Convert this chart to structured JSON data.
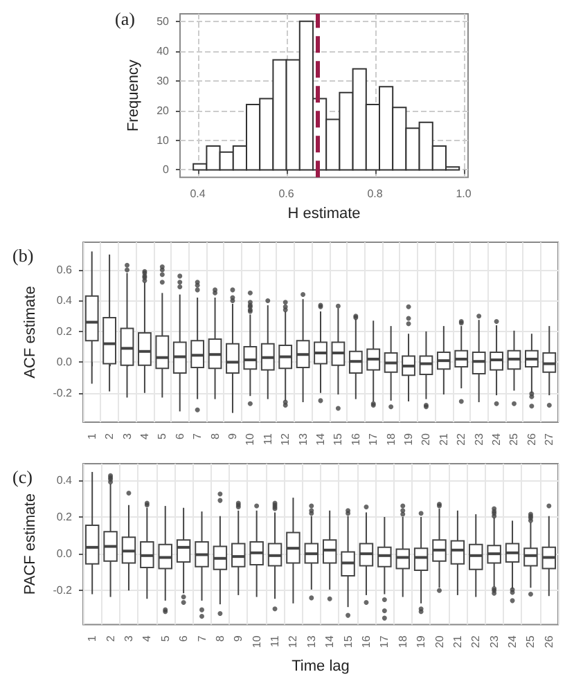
{
  "chart_data": [
    {
      "type": "histogram",
      "title": "(a)",
      "xlabel": "H estimate",
      "ylabel": "Frequency",
      "color": "#ffffff",
      "bins": [
        0.39,
        0.42,
        0.45,
        0.48,
        0.51,
        0.54,
        0.57,
        0.6,
        0.63,
        0.66,
        0.69,
        0.72,
        0.75,
        0.78,
        0.81,
        0.84,
        0.87,
        0.9,
        0.93,
        0.96,
        0.99
      ],
      "values": [
        2,
        8,
        6,
        8,
        22,
        24,
        37,
        37,
        50,
        24,
        17,
        26,
        34,
        22,
        28,
        21,
        14,
        16,
        8,
        1
      ],
      "xlim": [
        0.36,
        1.01
      ],
      "xticks": [
        0.4,
        0.6,
        0.8,
        {
          "value": 1,
          "label": "1.0"
        }
      ],
      "ylim": [
        -2.5,
        52.5
      ],
      "yticks": [
        0,
        10,
        20,
        30,
        40,
        50
      ],
      "ref_lines": [
        {
          "axis": "x",
          "value": 0.67,
          "color": "#9b1b48",
          "line_style": "dashed"
        }
      ],
      "grid": true
    },
    {
      "type": "box",
      "title": "(b)",
      "ylabel": "ACF estimate",
      "color": "#444444",
      "categories": [
        "1",
        "2",
        "3",
        "4",
        "5",
        "6",
        "7",
        "8",
        "9",
        "10",
        "11",
        "12",
        "13",
        "14",
        "15",
        "16",
        "17",
        "18",
        "19",
        "20",
        "21",
        "22",
        "23",
        "24",
        "25",
        "26",
        "27"
      ],
      "boxes": [
        {
          "low": -0.14,
          "q1": 0.14,
          "median": 0.26,
          "q3": 0.43,
          "high": 0.72
        },
        {
          "low": -0.19,
          "q1": -0.01,
          "median": 0.12,
          "q3": 0.29,
          "high": 0.7
        },
        {
          "low": -0.23,
          "q1": -0.02,
          "median": 0.09,
          "q3": 0.22,
          "high": 0.58,
          "outliers": [
            0.63,
            0.6
          ]
        },
        {
          "low": -0.2,
          "q1": -0.02,
          "median": 0.07,
          "q3": 0.19,
          "high": 0.52,
          "outliers": [
            0.59,
            0.58,
            0.56,
            0.55,
            0.53
          ]
        },
        {
          "low": -0.23,
          "q1": -0.04,
          "median": 0.03,
          "q3": 0.17,
          "high": 0.45,
          "outliers": [
            0.62,
            0.6,
            0.57,
            0.52
          ]
        },
        {
          "low": -0.32,
          "q1": -0.07,
          "median": 0.035,
          "q3": 0.13,
          "high": 0.44,
          "outliers": [
            0.56,
            0.52,
            0.49
          ]
        },
        {
          "low": -0.24,
          "q1": -0.035,
          "median": 0.045,
          "q3": 0.14,
          "high": 0.42,
          "outliers": [
            0.52,
            0.5,
            0.47,
            -0.31
          ]
        },
        {
          "low": -0.24,
          "q1": -0.04,
          "median": 0.05,
          "q3": 0.15,
          "high": 0.42,
          "outliers": [
            0.47,
            0.45
          ]
        },
        {
          "low": -0.33,
          "q1": -0.07,
          "median": 0.0,
          "q3": 0.12,
          "high": 0.38,
          "outliers": [
            0.47,
            0.42,
            0.4
          ]
        },
        {
          "low": -0.22,
          "q1": -0.045,
          "median": 0.015,
          "q3": 0.1,
          "high": 0.31,
          "outliers": [
            0.45,
            0.39,
            0.37,
            0.36,
            0.34,
            0.33,
            -0.27
          ]
        },
        {
          "low": -0.24,
          "q1": -0.05,
          "median": 0.03,
          "q3": 0.12,
          "high": 0.37,
          "outliers": [
            0.4
          ]
        },
        {
          "low": -0.25,
          "q1": -0.04,
          "median": 0.035,
          "q3": 0.11,
          "high": 0.33,
          "outliers": [
            0.39,
            0.36,
            0.34,
            -0.26,
            -0.28
          ]
        },
        {
          "low": -0.26,
          "q1": -0.035,
          "median": 0.05,
          "q3": 0.14,
          "high": 0.41,
          "outliers": [
            0.44
          ]
        },
        {
          "low": -0.2,
          "q1": -0.01,
          "median": 0.06,
          "q3": 0.13,
          "high": 0.33,
          "outliers": [
            0.37,
            0.36,
            -0.25
          ]
        },
        {
          "low": -0.21,
          "q1": -0.02,
          "median": 0.06,
          "q3": 0.13,
          "high": 0.35,
          "outliers": [
            0.365,
            -0.3
          ]
        },
        {
          "low": -0.24,
          "q1": -0.07,
          "median": 0.005,
          "q3": 0.07,
          "high": 0.28,
          "outliers": [
            0.3,
            0.29
          ]
        },
        {
          "low": -0.255,
          "q1": -0.05,
          "median": 0.02,
          "q3": 0.085,
          "high": 0.27,
          "outliers": [
            -0.27,
            -0.28
          ]
        },
        {
          "low": -0.25,
          "q1": -0.065,
          "median": -0.005,
          "q3": 0.06,
          "high": 0.235,
          "outliers": [
            -0.29
          ]
        },
        {
          "low": -0.255,
          "q1": -0.085,
          "median": -0.025,
          "q3": 0.04,
          "high": 0.185,
          "outliers": [
            0.36,
            0.285,
            0.25
          ]
        },
        {
          "low": -0.24,
          "q1": -0.08,
          "median": -0.01,
          "q3": 0.04,
          "high": 0.2,
          "outliers": [
            -0.28,
            -0.29
          ]
        },
        {
          "low": -0.21,
          "q1": -0.045,
          "median": 0.01,
          "q3": 0.065,
          "high": 0.235
        },
        {
          "low": -0.17,
          "q1": -0.03,
          "median": 0.02,
          "q3": 0.075,
          "high": 0.235,
          "outliers": [
            0.265,
            0.255,
            -0.255
          ]
        },
        {
          "low": -0.26,
          "q1": -0.075,
          "median": 0.005,
          "q3": 0.065,
          "high": 0.275,
          "outliers": [
            0.3
          ]
        },
        {
          "low": -0.215,
          "q1": -0.05,
          "median": 0.015,
          "q3": 0.065,
          "high": 0.24,
          "outliers": [
            0.265,
            -0.27
          ]
        },
        {
          "low": -0.185,
          "q1": -0.045,
          "median": 0.02,
          "q3": 0.075,
          "high": 0.205,
          "outliers": [
            -0.27
          ]
        },
        {
          "low": -0.2,
          "q1": -0.03,
          "median": 0.02,
          "q3": 0.075,
          "high": 0.185,
          "outliers": [
            -0.205,
            -0.225,
            -0.285
          ]
        },
        {
          "low": -0.215,
          "q1": -0.065,
          "median": -0.01,
          "q3": 0.06,
          "high": 0.235,
          "outliers": [
            -0.28
          ]
        }
      ],
      "ylim": [
        -0.39,
        0.78
      ],
      "yticks": [
        -0.2,
        {
          "value": 0,
          "label": "0.0"
        },
        0.2,
        0.4,
        0.6
      ],
      "grid": true
    },
    {
      "type": "box",
      "title": "(c)",
      "xlabel": "Time lag",
      "ylabel": "PACF estimate",
      "color": "#444444",
      "categories": [
        "1",
        "2",
        "3",
        "4",
        "5",
        "6",
        "7",
        "8",
        "9",
        "10",
        "11",
        "12",
        "13",
        "14",
        "15",
        "16",
        "17",
        "18",
        "19",
        "20",
        "21",
        "22",
        "23",
        "24",
        "25",
        "26"
      ],
      "boxes": [
        {
          "low": -0.22,
          "q1": -0.055,
          "median": 0.035,
          "q3": 0.155,
          "high": 0.445
        },
        {
          "low": -0.235,
          "q1": -0.04,
          "median": 0.04,
          "q3": 0.12,
          "high": 0.38,
          "outliers": [
            0.425,
            0.415,
            0.405,
            0.39
          ]
        },
        {
          "low": -0.2,
          "q1": -0.05,
          "median": 0.015,
          "q3": 0.09,
          "high": 0.265,
          "outliers": [
            0.33
          ]
        },
        {
          "low": -0.245,
          "q1": -0.075,
          "median": -0.01,
          "q3": 0.065,
          "high": 0.25,
          "outliers": [
            0.275,
            0.265
          ]
        },
        {
          "low": -0.255,
          "q1": -0.08,
          "median": -0.02,
          "q3": 0.05,
          "high": 0.26,
          "outliers": [
            -0.305,
            -0.315
          ]
        },
        {
          "low": -0.215,
          "q1": -0.045,
          "median": 0.035,
          "q3": 0.075,
          "high": 0.25,
          "outliers": [
            -0.235,
            -0.265
          ]
        },
        {
          "low": -0.255,
          "q1": -0.07,
          "median": -0.005,
          "q3": 0.065,
          "high": 0.23,
          "outliers": [
            -0.305,
            -0.34
          ]
        },
        {
          "low": -0.275,
          "q1": -0.085,
          "median": -0.025,
          "q3": 0.04,
          "high": 0.205,
          "outliers": [
            0.325,
            0.29,
            -0.325
          ]
        },
        {
          "low": -0.225,
          "q1": -0.07,
          "median": -0.015,
          "q3": 0.055,
          "high": 0.235,
          "outliers": [
            0.275,
            0.265,
            0.255
          ]
        },
        {
          "low": -0.235,
          "q1": -0.06,
          "median": 0.005,
          "q3": 0.065,
          "high": 0.235,
          "outliers": [
            0.26
          ]
        },
        {
          "low": -0.245,
          "q1": -0.065,
          "median": -0.01,
          "q3": 0.055,
          "high": 0.225,
          "outliers": [
            0.275,
            0.265,
            0.255,
            0.245,
            -0.3
          ]
        },
        {
          "low": -0.27,
          "q1": -0.05,
          "median": 0.03,
          "q3": 0.115,
          "high": 0.305
        },
        {
          "low": -0.195,
          "q1": -0.05,
          "median": 0.0,
          "q3": 0.055,
          "high": 0.205,
          "outliers": [
            0.26,
            0.235,
            0.22,
            -0.24
          ]
        },
        {
          "low": -0.195,
          "q1": -0.05,
          "median": 0.02,
          "q3": 0.075,
          "high": 0.235,
          "outliers": [
            -0.245
          ]
        },
        {
          "low": -0.29,
          "q1": -0.12,
          "median": -0.05,
          "q3": 0.01,
          "high": 0.205,
          "outliers": [
            0.235,
            0.22,
            -0.335
          ]
        },
        {
          "low": -0.225,
          "q1": -0.065,
          "median": 0.0,
          "q3": 0.055,
          "high": 0.225,
          "outliers": [
            0.255,
            -0.265
          ]
        },
        {
          "low": -0.22,
          "q1": -0.07,
          "median": -0.01,
          "q3": 0.035,
          "high": 0.2,
          "outliers": [
            -0.25,
            -0.31,
            -0.35
          ]
        },
        {
          "low": -0.235,
          "q1": -0.08,
          "median": -0.02,
          "q3": 0.025,
          "high": 0.2,
          "outliers": [
            0.26,
            0.235,
            0.215
          ]
        },
        {
          "low": -0.27,
          "q1": -0.09,
          "median": -0.02,
          "q3": 0.03,
          "high": 0.2,
          "outliers": [
            0.22,
            -0.3,
            -0.315
          ]
        },
        {
          "low": -0.185,
          "q1": -0.04,
          "median": 0.02,
          "q3": 0.075,
          "high": 0.245,
          "outliers": [
            0.27,
            0.26,
            -0.2
          ]
        },
        {
          "low": -0.225,
          "q1": -0.055,
          "median": 0.02,
          "q3": 0.07,
          "high": 0.235
        },
        {
          "low": -0.235,
          "q1": -0.085,
          "median": -0.01,
          "q3": 0.05,
          "high": 0.215
        },
        {
          "low": -0.18,
          "q1": -0.05,
          "median": 0.0,
          "q3": 0.045,
          "high": 0.195,
          "outliers": [
            0.245,
            0.23,
            0.22,
            0.205,
            -0.19,
            -0.2,
            -0.215
          ]
        },
        {
          "low": -0.19,
          "q1": -0.045,
          "median": 0.005,
          "q3": 0.055,
          "high": 0.18,
          "outliers": [
            -0.195,
            -0.21,
            -0.255
          ]
        },
        {
          "low": -0.185,
          "q1": -0.065,
          "median": -0.01,
          "q3": 0.03,
          "high": 0.17,
          "outliers": [
            0.215,
            0.205,
            0.195,
            0.18,
            -0.22
          ]
        },
        {
          "low": -0.23,
          "q1": -0.08,
          "median": -0.02,
          "q3": 0.035,
          "high": 0.205,
          "outliers": [
            0.26
          ]
        }
      ],
      "ylim": [
        -0.385,
        0.49
      ],
      "yticks": [
        -0.2,
        {
          "value": 0,
          "label": "0.0"
        },
        0.2,
        0.4
      ],
      "grid": true
    }
  ]
}
